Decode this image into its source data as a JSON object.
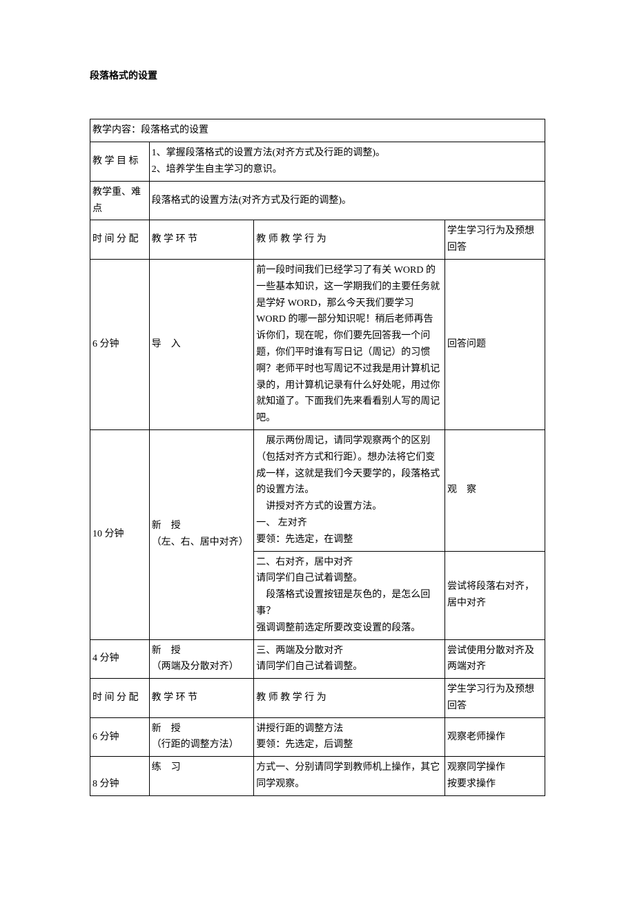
{
  "title": "段落格式的设置",
  "rows": {
    "content": {
      "label": "教学内容：段落格式的设置"
    },
    "goal": {
      "label": "教 学 目 标",
      "item1": "1、掌握段落格式的设置方法(对齐方式及行距的调整)。",
      "item2": "2、培养学生自主学习的意识。"
    },
    "difficulty": {
      "label": "教学重、难点",
      "value": "段落格式的设置方法(对齐方式及行距的调整)。"
    },
    "header1": {
      "time": "时 间 分 配",
      "segment": "教 学 环 节",
      "teacher": "教 师 教 学 行 为",
      "student": "学生学习行为及预想回答"
    },
    "r1": {
      "time": "6 分钟",
      "seg": "导　入",
      "teacher": "前一段时间我们已经学习了有关 WORD 的一些基本知识，这一学期我们的主要任务就是学好 WORD，那么今天我们要学习 WORD 的哪一部分知识呢！稍后老师再告诉你们，现在呢，你们要先回答我一个问题，你们平时谁有写日记（周记）的习惯啊？老师平时也写周记不过我是用计算机记录的，用计算机记录有什么好处呢，用过你就知道了。下面我们先来看看别人写的周记吧。",
      "student": "回答问题"
    },
    "r2": {
      "time": "10 分钟",
      "seg1": "新　授",
      "seg2": "（左、右、居中对齐）",
      "teacher1a": "　展示两份周记，请同学观察两个的区别（包括对齐方式和行距）。想办法将它们变成一样，这就是我们今天要学的，段落格式的设置方法。",
      "teacher1b": "　讲授对齐方式的设置方法。",
      "teacher1c": "一、 左对齐",
      "teacher1d": "要领：先选定，在调整",
      "student1": "观　察",
      "teacher2a": "二、右对齐，居中对齐",
      "teacher2b": "请同学们自己试着调整。",
      "teacher2c": "　段落格式设置按钮是灰色的，是怎么回事？",
      "teacher2d": "强调调整前选定所要改变设置的段落。",
      "student2": "尝试将段落右对齐，居中对齐"
    },
    "r3": {
      "time": "4 分钟",
      "seg1": "新　授",
      "seg2": "（两端及分散对齐）",
      "teacher1": "三、两端及分散对齐",
      "teacher2": "请同学们自己试着调整。",
      "student": "尝试使用分散对齐及两端对齐"
    },
    "header2": {
      "time": "时 间 分 配",
      "segment": "教 学 环 节",
      "teacher": "教 师 教 学 行 为",
      "student": "学生学习行为及预想回答"
    },
    "r4": {
      "time": "6 分钟",
      "seg1": "新　授",
      "seg2": "（行距的调整方法）",
      "teacher1": "讲授行距的调整方法",
      "teacher2": "要领：先选定，后调整",
      "student": "观察老师操作"
    },
    "r5": {
      "time": "8 分钟",
      "seg": "练　习",
      "teacher": "方式一、分别请同学到教师机上操作，其它同学观察。",
      "student1": "观察同学操作",
      "student2": "按要求操作"
    }
  }
}
